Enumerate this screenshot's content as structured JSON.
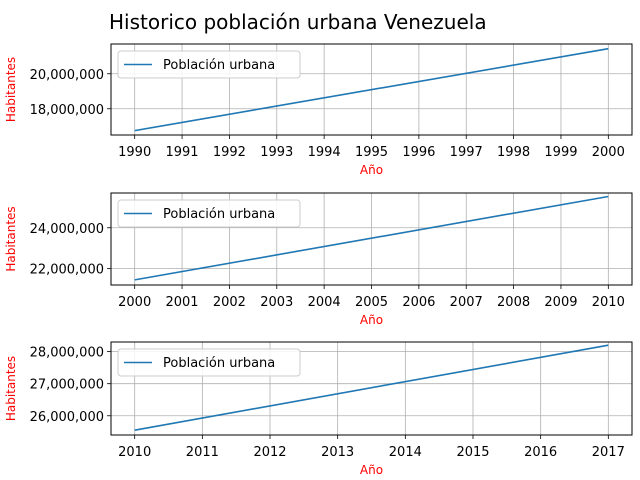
{
  "title": "Historico población urbana Venezuela",
  "colors": {
    "line": "#1f77b4",
    "label": "#ff0000",
    "grid": "#b0b0b0"
  },
  "chart_data": [
    {
      "type": "line",
      "xlabel": "Año",
      "ylabel": "Habitantes",
      "grid": true,
      "legend": "upper-left",
      "xlim": [
        1989.5,
        2000.5
      ],
      "ylim": [
        16500000,
        21700000
      ],
      "xticks": [
        "1990",
        "1991",
        "1992",
        "1993",
        "1994",
        "1995",
        "1996",
        "1997",
        "1998",
        "1999",
        "2000"
      ],
      "yticks": [
        18000000,
        20000000
      ],
      "ytick_labels": [
        "18,000,000",
        "20,000,000"
      ],
      "series": [
        {
          "name": "Población urbana",
          "x": [
            1990,
            2000
          ],
          "y": [
            16750000,
            21430000
          ]
        }
      ]
    },
    {
      "type": "line",
      "xlabel": "Año",
      "ylabel": "Habitantes",
      "grid": true,
      "legend": "upper-left",
      "xlim": [
        1999.5,
        2010.5
      ],
      "ylim": [
        21200000,
        25700000
      ],
      "xticks": [
        "2000",
        "2001",
        "2002",
        "2003",
        "2004",
        "2005",
        "2006",
        "2007",
        "2008",
        "2009",
        "2010"
      ],
      "yticks": [
        22000000,
        24000000
      ],
      "ytick_labels": [
        "22,000,000",
        "24,000,000"
      ],
      "series": [
        {
          "name": "Población urbana",
          "x": [
            2000,
            2010
          ],
          "y": [
            21450000,
            25530000
          ]
        }
      ]
    },
    {
      "type": "line",
      "xlabel": "Año",
      "ylabel": "Habitantes",
      "grid": true,
      "legend": "upper-left",
      "xlim": [
        2009.65,
        2017.35
      ],
      "ylim": [
        25400000,
        28300000
      ],
      "xticks": [
        "2010",
        "2011",
        "2012",
        "2013",
        "2014",
        "2015",
        "2016",
        "2017"
      ],
      "yticks": [
        26000000,
        27000000,
        28000000
      ],
      "ytick_labels": [
        "26,000,000",
        "27,000,000",
        "28,000,000"
      ],
      "series": [
        {
          "name": "Población urbana",
          "x": [
            2010,
            2017
          ],
          "y": [
            25550000,
            28200000
          ]
        }
      ]
    }
  ]
}
